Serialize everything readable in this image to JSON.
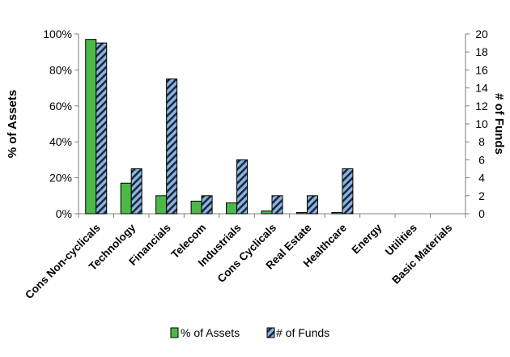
{
  "chart_data": {
    "type": "bar",
    "categories": [
      "Cons Non-cyclicals",
      "Technology",
      "Financials",
      "Telecom",
      "Industrials",
      "Cons Cyclicals",
      "Real Estate",
      "Healthcare",
      "Energy",
      "Utilities",
      "Basic Materials"
    ],
    "series": [
      {
        "name": "% of Assets",
        "axis": "left",
        "values": [
          0.97,
          0.17,
          0.1,
          0.07,
          0.06,
          0.015,
          0.007,
          0.007,
          0,
          0,
          0
        ],
        "color": "#4cb848"
      },
      {
        "name": "# of Funds",
        "axis": "right",
        "values": [
          19,
          5,
          15,
          2,
          6,
          2,
          2,
          5,
          0,
          0,
          0
        ],
        "color": "#8db3e2",
        "pattern": "diagonal-stripes"
      }
    ],
    "ylabel": "% of Assets",
    "y2label": "# of Funds",
    "ylim": [
      0,
      1
    ],
    "y2lim": [
      0,
      20
    ],
    "yticks": [
      "0%",
      "20%",
      "40%",
      "60%",
      "80%",
      "100%"
    ],
    "y2ticks": [
      "0",
      "2",
      "4",
      "6",
      "8",
      "10",
      "12",
      "14",
      "16",
      "18",
      "20"
    ],
    "grid": false,
    "legend_position": "bottom"
  }
}
